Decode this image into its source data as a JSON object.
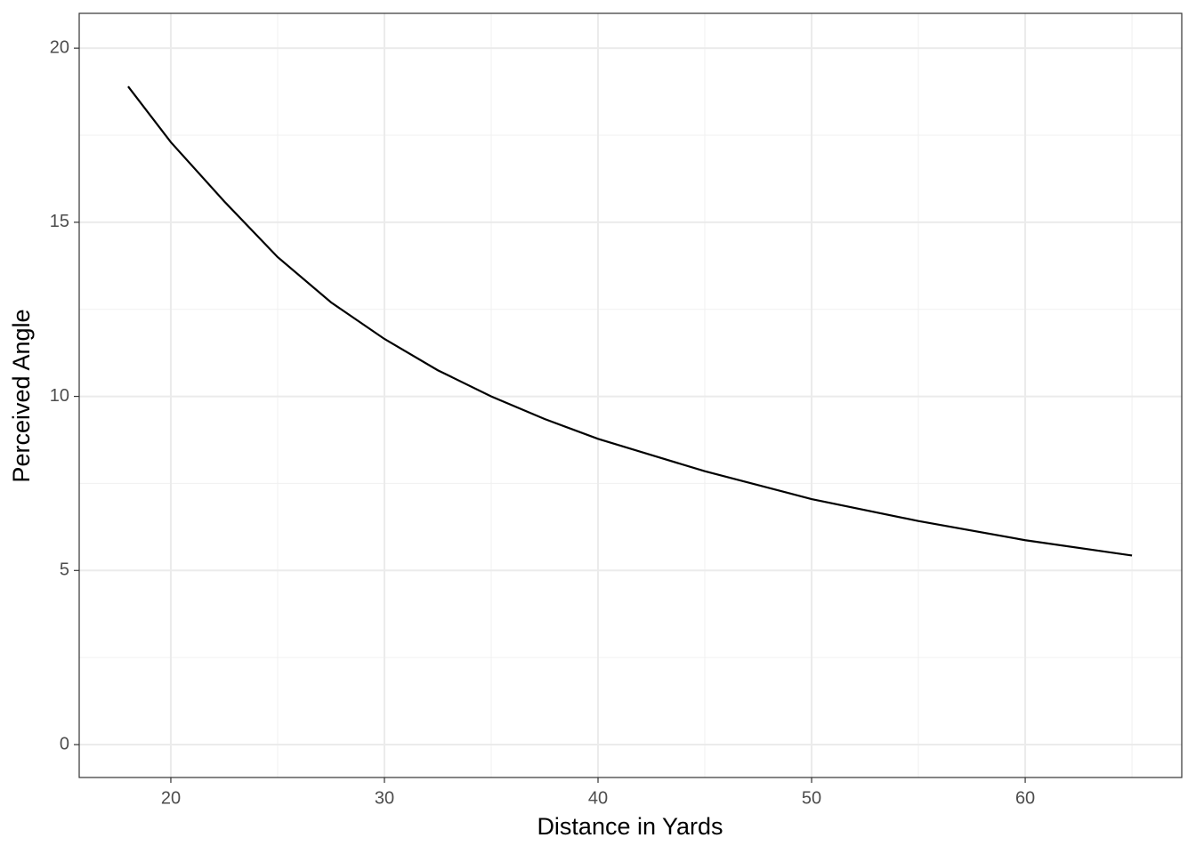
{
  "chart_data": {
    "type": "line",
    "x_label": "Distance in Yards",
    "y_label": "Perceived Angle",
    "x": [
      18,
      20,
      22.5,
      25,
      27.5,
      30,
      32.5,
      35,
      37.5,
      40,
      45,
      50,
      55,
      60,
      65
    ],
    "series": [
      {
        "color": "#000000",
        "values": [
          18.9,
          17.3,
          15.6,
          14.0,
          12.7,
          11.65,
          10.75,
          10.0,
          9.35,
          8.78,
          7.85,
          7.05,
          6.42,
          5.87,
          5.43
        ]
      }
    ],
    "xlim": [
      15.71,
      67.33
    ],
    "ylim": [
      -0.945,
      21.0
    ],
    "xticks": [
      20,
      30,
      40,
      50,
      60
    ],
    "yticks": [
      0,
      5,
      10,
      15,
      20
    ],
    "grid": true
  }
}
